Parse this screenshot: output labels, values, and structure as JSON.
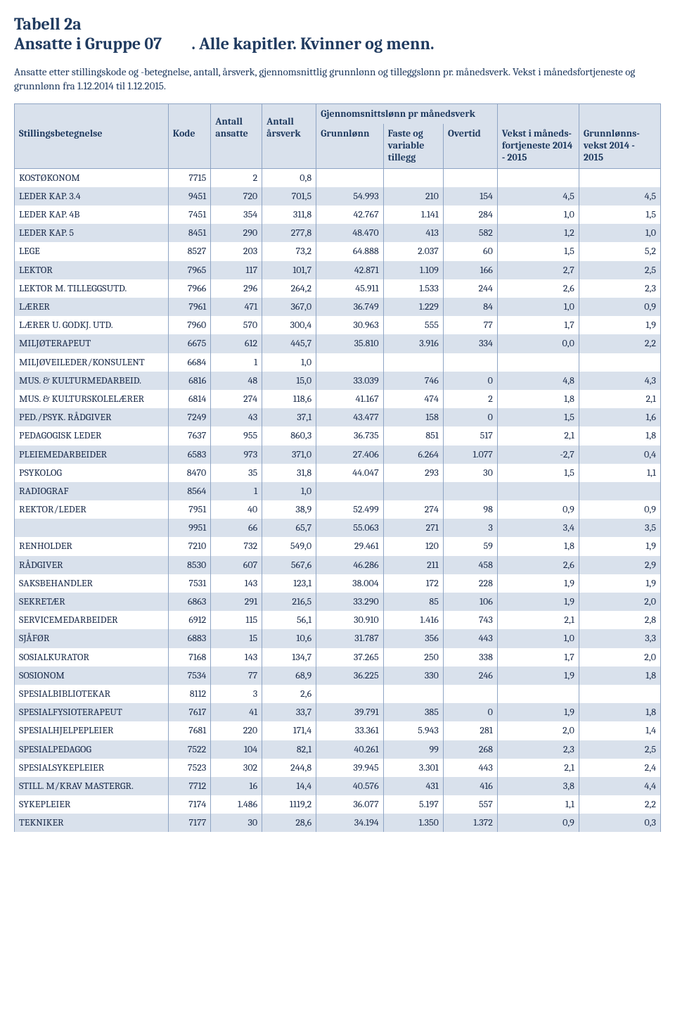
{
  "title1": "Tabell 2a",
  "title2_left": "Ansatte i Gruppe 07",
  "title2_right": ". Alle kapitler. Kvinner og menn.",
  "subtitle": "Ansatte etter stillingskode og -betegnelse, antall, årsverk, gjennomsnittlig grunnlønn og tilleggslønn pr. månedsverk. Vekst i månedsfortjeneste og grunnlønn fra 1.12.2014 til 1.12.2015.",
  "headers": {
    "group": "Gjennomsnittslønn pr månedsverk",
    "stilling": "Stillingsbetegnelse",
    "kode": "Kode",
    "antall": "Antall ansatte",
    "arsverk": "Antall årsverk",
    "grunn": "Grunnlønn",
    "faste": "Faste og variable tillegg",
    "overtid": "Overtid",
    "vekst": "Vekst i måneds-fortjeneste 2014 - 2015",
    "gvekst": "Grunnlønns-vekst 2014 - 2015"
  },
  "rows": [
    {
      "label": "KOSTØKONOM",
      "kode": "7715",
      "ant": "2",
      "ars": "0,8",
      "g": "",
      "f": "",
      "o": "",
      "v": "",
      "gv": ""
    },
    {
      "label": "LEDER KAP. 3.4",
      "kode": "9451",
      "ant": "720",
      "ars": "701,5",
      "g": "54.993",
      "f": "210",
      "o": "154",
      "v": "4,5",
      "gv": "4,5"
    },
    {
      "label": "LEDER KAP. 4B",
      "kode": "7451",
      "ant": "354",
      "ars": "311,8",
      "g": "42.767",
      "f": "1.141",
      "o": "284",
      "v": "1,0",
      "gv": "1,5"
    },
    {
      "label": "LEDER KAP. 5",
      "kode": "8451",
      "ant": "290",
      "ars": "277,8",
      "g": "48.470",
      "f": "413",
      "o": "582",
      "v": "1,2",
      "gv": "1,0"
    },
    {
      "label": "LEGE",
      "kode": "8527",
      "ant": "203",
      "ars": "73,2",
      "g": "64.888",
      "f": "2.037",
      "o": "60",
      "v": "1,5",
      "gv": "5,2"
    },
    {
      "label": "LEKTOR",
      "kode": "7965",
      "ant": "117",
      "ars": "101,7",
      "g": "42.871",
      "f": "1.109",
      "o": "166",
      "v": "2,7",
      "gv": "2,5"
    },
    {
      "label": "LEKTOR M. TILLEGGSUTD.",
      "kode": "7966",
      "ant": "296",
      "ars": "264,2",
      "g": "45.911",
      "f": "1.533",
      "o": "244",
      "v": "2,6",
      "gv": "2,3"
    },
    {
      "label": "LÆRER",
      "kode": "7961",
      "ant": "471",
      "ars": "367,0",
      "g": "36.749",
      "f": "1.229",
      "o": "84",
      "v": "1,0",
      "gv": "0,9"
    },
    {
      "label": "LÆRER U. GODKJ. UTD.",
      "kode": "7960",
      "ant": "570",
      "ars": "300,4",
      "g": "30.963",
      "f": "555",
      "o": "77",
      "v": "1,7",
      "gv": "1,9"
    },
    {
      "label": "MILJØTERAPEUT",
      "kode": "6675",
      "ant": "612",
      "ars": "445,7",
      "g": "35.810",
      "f": "3.916",
      "o": "334",
      "v": "0,0",
      "gv": "2,2"
    },
    {
      "label": "MILJØVEILEDER/KONSULENT",
      "kode": "6684",
      "ant": "1",
      "ars": "1,0",
      "g": "",
      "f": "",
      "o": "",
      "v": "",
      "gv": ""
    },
    {
      "label": "MUS. & KULTURMEDARBEID.",
      "kode": "6816",
      "ant": "48",
      "ars": "15,0",
      "g": "33.039",
      "f": "746",
      "o": "0",
      "v": "4,8",
      "gv": "4,3"
    },
    {
      "label": "MUS. & KULTURSKOLELÆRER",
      "kode": "6814",
      "ant": "274",
      "ars": "118,6",
      "g": "41.167",
      "f": "474",
      "o": "2",
      "v": "1,8",
      "gv": "2,1"
    },
    {
      "label": "PED./PSYK. RÅDGIVER",
      "kode": "7249",
      "ant": "43",
      "ars": "37,1",
      "g": "43.477",
      "f": "158",
      "o": "0",
      "v": "1,5",
      "gv": "1,6"
    },
    {
      "label": "PEDAGOGISK LEDER",
      "kode": "7637",
      "ant": "955",
      "ars": "860,3",
      "g": "36.735",
      "f": "851",
      "o": "517",
      "v": "2,1",
      "gv": "1,8"
    },
    {
      "label": "PLEIEMEDARBEIDER",
      "kode": "6583",
      "ant": "973",
      "ars": "371,0",
      "g": "27.406",
      "f": "6.264",
      "o": "1.077",
      "v": "-2,7",
      "gv": "0,4"
    },
    {
      "label": "PSYKOLOG",
      "kode": "8470",
      "ant": "35",
      "ars": "31,8",
      "g": "44.047",
      "f": "293",
      "o": "30",
      "v": "1,5",
      "gv": "1,1"
    },
    {
      "label": "RADIOGRAF",
      "kode": "8564",
      "ant": "1",
      "ars": "1,0",
      "g": "",
      "f": "",
      "o": "",
      "v": "",
      "gv": ""
    },
    {
      "label": "REKTOR/LEDER",
      "kode": "7951",
      "ant": "40",
      "ars": "38,9",
      "g": "52.499",
      "f": "274",
      "o": "98",
      "v": "0,9",
      "gv": "0,9"
    },
    {
      "label": "",
      "kode": "9951",
      "ant": "66",
      "ars": "65,7",
      "g": "55.063",
      "f": "271",
      "o": "3",
      "v": "3,4",
      "gv": "3,5"
    },
    {
      "label": "RENHOLDER",
      "kode": "7210",
      "ant": "732",
      "ars": "549,0",
      "g": "29.461",
      "f": "120",
      "o": "59",
      "v": "1,8",
      "gv": "1,9"
    },
    {
      "label": "RÅDGIVER",
      "kode": "8530",
      "ant": "607",
      "ars": "567,6",
      "g": "46.286",
      "f": "211",
      "o": "458",
      "v": "2,6",
      "gv": "2,9"
    },
    {
      "label": "SAKSBEHANDLER",
      "kode": "7531",
      "ant": "143",
      "ars": "123,1",
      "g": "38.004",
      "f": "172",
      "o": "228",
      "v": "1,9",
      "gv": "1,9"
    },
    {
      "label": "SEKRETÆR",
      "kode": "6863",
      "ant": "291",
      "ars": "216,5",
      "g": "33.290",
      "f": "85",
      "o": "106",
      "v": "1,9",
      "gv": "2,0"
    },
    {
      "label": "SERVICEMEDARBEIDER",
      "kode": "6912",
      "ant": "115",
      "ars": "56,1",
      "g": "30.910",
      "f": "1.416",
      "o": "743",
      "v": "2,1",
      "gv": "2,8"
    },
    {
      "label": "SJÅFØR",
      "kode": "6883",
      "ant": "15",
      "ars": "10,6",
      "g": "31.787",
      "f": "356",
      "o": "443",
      "v": "1,0",
      "gv": "3,3"
    },
    {
      "label": "SOSIALKURATOR",
      "kode": "7168",
      "ant": "143",
      "ars": "134,7",
      "g": "37.265",
      "f": "250",
      "o": "338",
      "v": "1,7",
      "gv": "2,0"
    },
    {
      "label": "SOSIONOM",
      "kode": "7534",
      "ant": "77",
      "ars": "68,9",
      "g": "36.225",
      "f": "330",
      "o": "246",
      "v": "1,9",
      "gv": "1,8"
    },
    {
      "label": "SPESIALBIBLIOTEKAR",
      "kode": "8112",
      "ant": "3",
      "ars": "2,6",
      "g": "",
      "f": "",
      "o": "",
      "v": "",
      "gv": ""
    },
    {
      "label": "SPESIALFYSIOTERAPEUT",
      "kode": "7617",
      "ant": "41",
      "ars": "33,7",
      "g": "39.791",
      "f": "385",
      "o": "0",
      "v": "1,9",
      "gv": "1,8"
    },
    {
      "label": "SPESIALHJELPEPLEIER",
      "kode": "7681",
      "ant": "220",
      "ars": "171,4",
      "g": "33.361",
      "f": "5.943",
      "o": "281",
      "v": "2,0",
      "gv": "1,4"
    },
    {
      "label": "SPESIALPEDAGOG",
      "kode": "7522",
      "ant": "104",
      "ars": "82,1",
      "g": "40.261",
      "f": "99",
      "o": "268",
      "v": "2,3",
      "gv": "2,5"
    },
    {
      "label": "SPESIALSYKEPLEIER",
      "kode": "7523",
      "ant": "302",
      "ars": "244,8",
      "g": "39.945",
      "f": "3.301",
      "o": "443",
      "v": "2,1",
      "gv": "2,4"
    },
    {
      "label": "STILL. M/KRAV MASTERGR.",
      "kode": "7712",
      "ant": "16",
      "ars": "14,4",
      "g": "40.576",
      "f": "431",
      "o": "416",
      "v": "3,8",
      "gv": "4,4"
    },
    {
      "label": "SYKEPLEIER",
      "kode": "7174",
      "ant": "1.486",
      "ars": "1119,2",
      "g": "36.077",
      "f": "5.197",
      "o": "557",
      "v": "1,1",
      "gv": "2,2"
    },
    {
      "label": "TEKNIKER",
      "kode": "7177",
      "ant": "30",
      "ars": "28,6",
      "g": "34.194",
      "f": "1.350",
      "o": "1.372",
      "v": "0,9",
      "gv": "0,3"
    }
  ]
}
